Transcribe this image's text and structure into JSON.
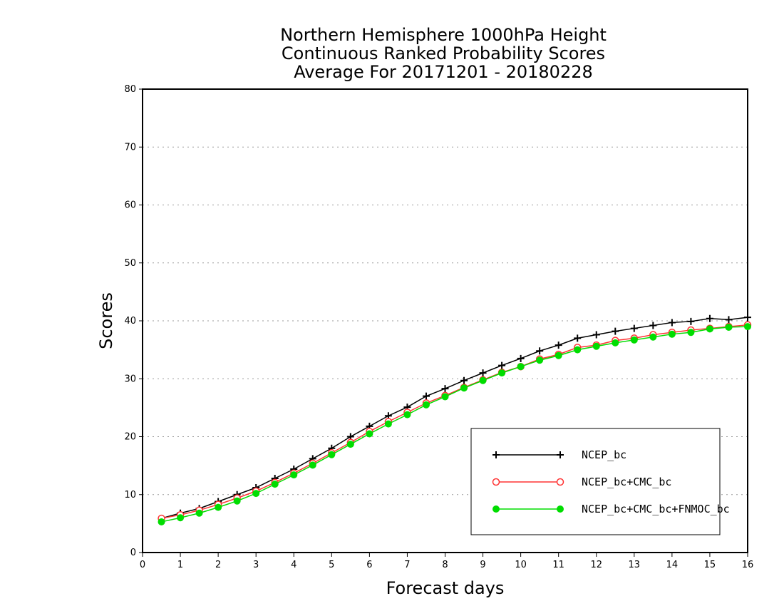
{
  "chart_data": {
    "type": "line",
    "title": [
      "Northern Hemisphere 1000hPa Height",
      "Continuous Ranked Probability Scores",
      "Average For 20171201 - 20180228"
    ],
    "xlabel": "Forecast days",
    "ylabel": "Scores",
    "xlim": [
      0,
      16
    ],
    "ylim": [
      0,
      80
    ],
    "xticks": [
      "0",
      "1",
      "2",
      "3",
      "4",
      "5",
      "6",
      "7",
      "8",
      "9",
      "10",
      "11",
      "12",
      "13",
      "14",
      "15",
      "16"
    ],
    "yticks": [
      "0",
      "10",
      "20",
      "30",
      "40",
      "50",
      "60",
      "70",
      "80"
    ],
    "grid": "dotted horizontal",
    "legend_position": "bottom-right",
    "x": [
      0.5,
      1,
      1.5,
      2,
      2.5,
      3,
      3.5,
      4,
      4.5,
      5,
      5.5,
      6,
      6.5,
      7,
      7.5,
      8,
      8.5,
      9,
      9.5,
      10,
      10.5,
      11,
      11.5,
      12,
      12.5,
      13,
      13.5,
      14,
      14.5,
      15,
      15.5,
      16
    ],
    "series": [
      {
        "name": "NCEP_bc",
        "color": "#000000",
        "marker": "plus",
        "values": [
          5.9,
          6.8,
          7.6,
          8.8,
          10.0,
          11.2,
          12.8,
          14.4,
          16.2,
          18.0,
          20.0,
          21.8,
          23.6,
          25.1,
          27.0,
          28.3,
          29.7,
          31.0,
          32.3,
          33.5,
          34.8,
          35.8,
          37.0,
          37.6,
          38.2,
          38.7,
          39.2,
          39.7,
          39.9,
          40.4,
          40.2,
          40.6
        ]
      },
      {
        "name": "NCEP_bc+CMC_bc",
        "color": "#ff3333",
        "marker": "open-circle",
        "values": [
          5.9,
          6.5,
          7.3,
          8.3,
          9.4,
          10.6,
          12.1,
          13.7,
          15.4,
          17.2,
          19.0,
          20.9,
          22.6,
          24.2,
          25.8,
          27.1,
          28.5,
          29.8,
          31.1,
          32.1,
          33.4,
          34.2,
          35.4,
          35.8,
          36.6,
          37.0,
          37.6,
          38.0,
          38.4,
          38.7,
          39.0,
          39.3
        ]
      },
      {
        "name": "NCEP_bc+CMC_bc+FNMOC_bc",
        "color": "#00dd00",
        "marker": "filled-circle",
        "values": [
          5.3,
          6.0,
          6.8,
          7.8,
          8.9,
          10.2,
          11.8,
          13.4,
          15.1,
          16.9,
          18.7,
          20.5,
          22.2,
          23.8,
          25.5,
          26.9,
          28.4,
          29.7,
          31.0,
          32.1,
          33.2,
          34.0,
          35.0,
          35.6,
          36.2,
          36.7,
          37.2,
          37.7,
          38.0,
          38.6,
          38.9,
          39.0
        ]
      }
    ]
  }
}
